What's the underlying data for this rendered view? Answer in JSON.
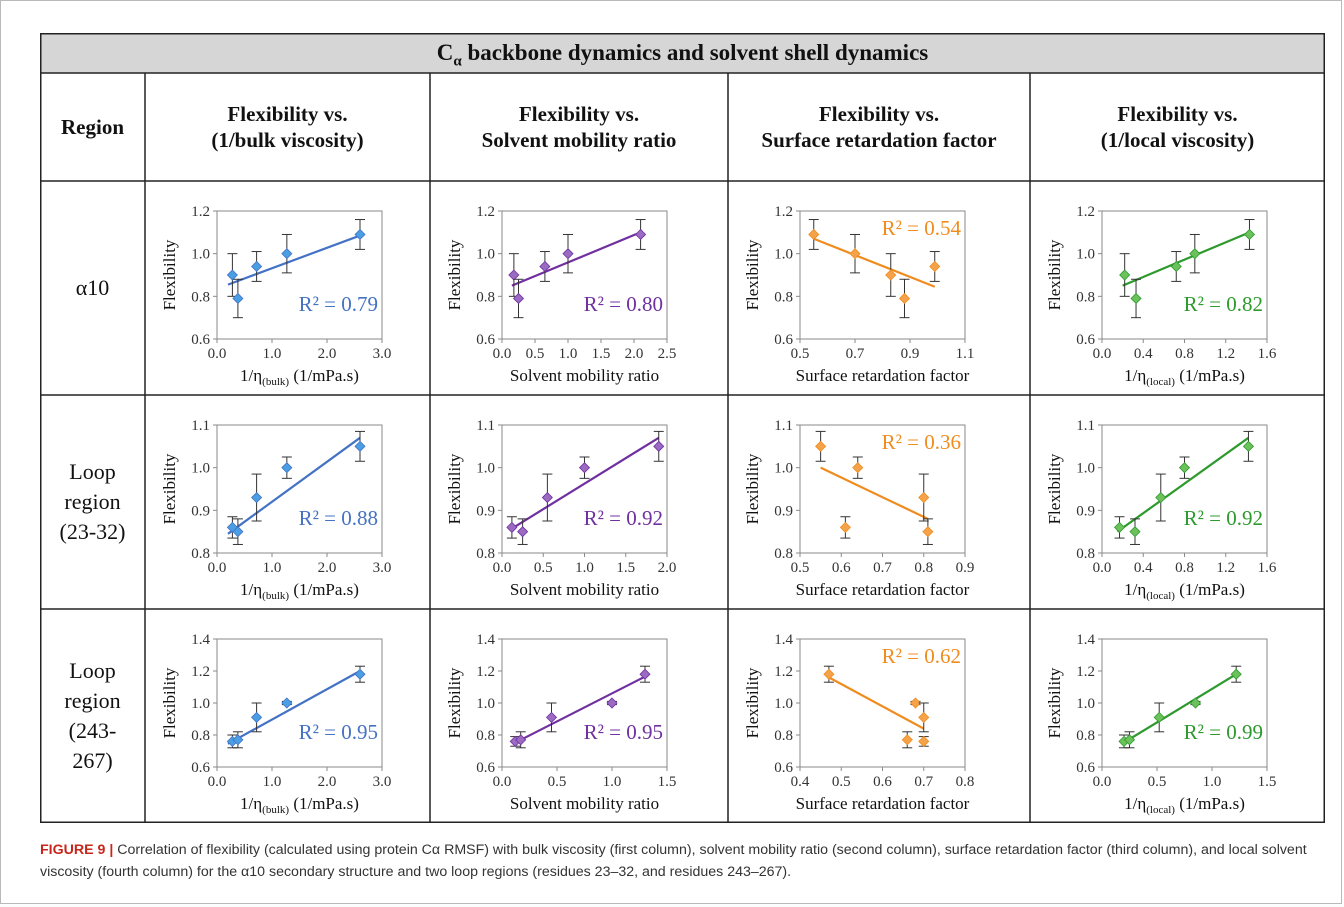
{
  "table": {
    "title_main": "C",
    "title_sub": "α",
    "title_rest": " backbone dynamics and solvent shell dynamics",
    "region_header": "Region",
    "column_headers": [
      {
        "line1": "Flexibility vs.",
        "line2": "(1/bulk viscosity)"
      },
      {
        "line1": "Flexibility vs.",
        "line2": "Solvent mobility ratio"
      },
      {
        "line1": "Flexibility vs.",
        "line2": "Surface retardation factor"
      },
      {
        "line1": "Flexibility vs.",
        "line2": "(1/local viscosity)"
      }
    ],
    "row_labels": [
      [
        "α10"
      ],
      [
        "Loop",
        "region",
        "(23-32)"
      ],
      [
        "Loop",
        "region",
        "(243-",
        "267)"
      ]
    ]
  },
  "colors": {
    "blue": "#4472c4",
    "blue_marker": "#4a9ee3",
    "purple": "#7030a0",
    "purple_marker": "#9b6ac2",
    "orange": "#f08c1e",
    "orange_marker": "#f5a34a",
    "green": "#2e9a2e",
    "green_marker": "#6cc25a",
    "header_bg": "#d6d6d6"
  },
  "chart_data": [
    {
      "id": "r1c1",
      "type": "scatter",
      "xlabel": "1/η(bulk) (1/mPa.s)",
      "ylabel": "Flexibility",
      "xlim": [
        0,
        3
      ],
      "ylim": [
        0.6,
        1.2
      ],
      "xticks": [
        "0.0",
        "1.0",
        "2.0",
        "3.0"
      ],
      "yticks": [
        "0.6",
        "0.8",
        "1.0",
        "1.2"
      ],
      "color": "blue",
      "r2": "R² = 0.79",
      "r2_pos": "bottom-right",
      "points": [
        {
          "x": 0.28,
          "y": 0.9,
          "err": 0.1
        },
        {
          "x": 0.38,
          "y": 0.79,
          "err": 0.09
        },
        {
          "x": 0.72,
          "y": 0.94,
          "err": 0.07
        },
        {
          "x": 1.27,
          "y": 1.0,
          "err": 0.09
        },
        {
          "x": 2.6,
          "y": 1.09,
          "err": 0.07
        }
      ],
      "fit": [
        [
          0.2,
          0.855
        ],
        [
          2.6,
          1.085
        ]
      ]
    },
    {
      "id": "r1c2",
      "type": "scatter",
      "xlabel": "Solvent mobility ratio",
      "ylabel": "Flexibility",
      "xlim": [
        0,
        2.5
      ],
      "ylim": [
        0.6,
        1.2
      ],
      "xticks": [
        "0.0",
        "0.5",
        "1.0",
        "1.5",
        "2.0",
        "2.5"
      ],
      "yticks": [
        "0.6",
        "0.8",
        "1.0",
        "1.2"
      ],
      "color": "purple",
      "r2": "R² = 0.80",
      "r2_pos": "bottom-right",
      "points": [
        {
          "x": 0.18,
          "y": 0.9,
          "err": 0.1
        },
        {
          "x": 0.25,
          "y": 0.79,
          "err": 0.09
        },
        {
          "x": 0.65,
          "y": 0.94,
          "err": 0.07
        },
        {
          "x": 1.0,
          "y": 1.0,
          "err": 0.09
        },
        {
          "x": 2.1,
          "y": 1.09,
          "err": 0.07
        }
      ],
      "fit": [
        [
          0.15,
          0.85
        ],
        [
          2.1,
          1.1
        ]
      ]
    },
    {
      "id": "r1c3",
      "type": "scatter",
      "xlabel": "Surface retardation factor",
      "ylabel": "Flexibility",
      "xlim": [
        0.5,
        1.1
      ],
      "ylim": [
        0.6,
        1.2
      ],
      "xticks": [
        "0.5",
        "0.7",
        "0.9",
        "1.1"
      ],
      "yticks": [
        "0.6",
        "0.8",
        "1.0",
        "1.2"
      ],
      "color": "orange",
      "r2": "R² = 0.54",
      "r2_pos": "top-right",
      "points": [
        {
          "x": 0.55,
          "y": 1.09,
          "err": 0.07
        },
        {
          "x": 0.7,
          "y": 1.0,
          "err": 0.09
        },
        {
          "x": 0.83,
          "y": 0.9,
          "err": 0.1
        },
        {
          "x": 0.88,
          "y": 0.79,
          "err": 0.09
        },
        {
          "x": 0.99,
          "y": 0.94,
          "err": 0.07
        }
      ],
      "fit": [
        [
          0.55,
          1.07
        ],
        [
          0.99,
          0.845
        ]
      ]
    },
    {
      "id": "r1c4",
      "type": "scatter",
      "xlabel": "1/η(local) (1/mPa.s)",
      "ylabel": "Flexibility",
      "xlim": [
        0,
        1.6
      ],
      "ylim": [
        0.6,
        1.2
      ],
      "xticks": [
        "0.0",
        "0.4",
        "0.8",
        "1.2",
        "1.6"
      ],
      "yticks": [
        "0.6",
        "0.8",
        "1.0",
        "1.2"
      ],
      "color": "green",
      "r2": "R² = 0.82",
      "r2_pos": "bottom-right",
      "points": [
        {
          "x": 0.22,
          "y": 0.9,
          "err": 0.1
        },
        {
          "x": 0.33,
          "y": 0.79,
          "err": 0.09
        },
        {
          "x": 0.72,
          "y": 0.94,
          "err": 0.07
        },
        {
          "x": 0.9,
          "y": 1.0,
          "err": 0.09
        },
        {
          "x": 1.43,
          "y": 1.09,
          "err": 0.07
        }
      ],
      "fit": [
        [
          0.2,
          0.85
        ],
        [
          1.43,
          1.1
        ]
      ]
    },
    {
      "id": "r2c1",
      "type": "scatter",
      "xlabel": "1/η(bulk) (1/mPa.s)",
      "ylabel": "Flexibility",
      "xlim": [
        0,
        3
      ],
      "ylim": [
        0.8,
        1.1
      ],
      "xticks": [
        "0.0",
        "1.0",
        "2.0",
        "3.0"
      ],
      "yticks": [
        "0.8",
        "0.9",
        "1.0",
        "1.1"
      ],
      "color": "blue",
      "r2": "R² = 0.88",
      "r2_pos": "bottom-right",
      "points": [
        {
          "x": 0.28,
          "y": 0.86,
          "err": 0.025
        },
        {
          "x": 0.38,
          "y": 0.85,
          "err": 0.03
        },
        {
          "x": 0.72,
          "y": 0.93,
          "err": 0.055
        },
        {
          "x": 1.27,
          "y": 1.0,
          "err": 0.025
        },
        {
          "x": 2.6,
          "y": 1.05,
          "err": 0.035
        }
      ],
      "fit": [
        [
          0.2,
          0.845
        ],
        [
          2.6,
          1.07
        ]
      ]
    },
    {
      "id": "r2c2",
      "type": "scatter",
      "xlabel": "Solvent mobility ratio",
      "ylabel": "Flexibility",
      "xlim": [
        0,
        2
      ],
      "ylim": [
        0.8,
        1.1
      ],
      "xticks": [
        "0.0",
        "0.5",
        "1.0",
        "1.5",
        "2.0"
      ],
      "yticks": [
        "0.8",
        "0.9",
        "1.0",
        "1.1"
      ],
      "color": "purple",
      "r2": "R² = 0.92",
      "r2_pos": "bottom-right",
      "points": [
        {
          "x": 0.12,
          "y": 0.86,
          "err": 0.025
        },
        {
          "x": 0.25,
          "y": 0.85,
          "err": 0.03
        },
        {
          "x": 0.55,
          "y": 0.93,
          "err": 0.055
        },
        {
          "x": 1.0,
          "y": 1.0,
          "err": 0.025
        },
        {
          "x": 1.9,
          "y": 1.05,
          "err": 0.035
        }
      ],
      "fit": [
        [
          0.1,
          0.855
        ],
        [
          1.9,
          1.07
        ]
      ]
    },
    {
      "id": "r2c3",
      "type": "scatter",
      "xlabel": "Surface retardation factor",
      "ylabel": "Flexibility",
      "xlim": [
        0.5,
        0.9
      ],
      "ylim": [
        0.8,
        1.1
      ],
      "xticks": [
        "0.5",
        "0.6",
        "0.7",
        "0.8",
        "0.9"
      ],
      "yticks": [
        "0.8",
        "0.9",
        "1.0",
        "1.1"
      ],
      "color": "orange",
      "r2": "R² = 0.36",
      "r2_pos": "top-right",
      "points": [
        {
          "x": 0.55,
          "y": 1.05,
          "err": 0.035
        },
        {
          "x": 0.61,
          "y": 0.86,
          "err": 0.025
        },
        {
          "x": 0.64,
          "y": 1.0,
          "err": 0.025
        },
        {
          "x": 0.8,
          "y": 0.93,
          "err": 0.055
        },
        {
          "x": 0.81,
          "y": 0.85,
          "err": 0.03
        }
      ],
      "fit": [
        [
          0.55,
          1.0
        ],
        [
          0.81,
          0.88
        ]
      ]
    },
    {
      "id": "r2c4",
      "type": "scatter",
      "xlabel": "1/η(local) (1/mPa.s)",
      "ylabel": "Flexibility",
      "xlim": [
        0,
        1.6
      ],
      "ylim": [
        0.8,
        1.1
      ],
      "xticks": [
        "0.0",
        "0.4",
        "0.8",
        "1.2",
        "1.6"
      ],
      "yticks": [
        "0.8",
        "0.9",
        "1.0",
        "1.1"
      ],
      "color": "green",
      "r2": "R² = 0.92",
      "r2_pos": "bottom-right",
      "points": [
        {
          "x": 0.17,
          "y": 0.86,
          "err": 0.025
        },
        {
          "x": 0.32,
          "y": 0.85,
          "err": 0.03
        },
        {
          "x": 0.57,
          "y": 0.93,
          "err": 0.055
        },
        {
          "x": 0.8,
          "y": 1.0,
          "err": 0.025
        },
        {
          "x": 1.42,
          "y": 1.05,
          "err": 0.035
        }
      ],
      "fit": [
        [
          0.15,
          0.85
        ],
        [
          1.42,
          1.07
        ]
      ]
    },
    {
      "id": "r3c1",
      "type": "scatter",
      "xlabel": "1/η(bulk) (1/mPa.s)",
      "ylabel": "Flexibility",
      "xlim": [
        0,
        3
      ],
      "ylim": [
        0.6,
        1.4
      ],
      "xticks": [
        "0.0",
        "1.0",
        "2.0",
        "3.0"
      ],
      "yticks": [
        "0.6",
        "0.8",
        "1.0",
        "1.2",
        "1.4"
      ],
      "color": "blue",
      "r2": "R² = 0.95",
      "r2_pos": "bottom-right",
      "points": [
        {
          "x": 0.28,
          "y": 0.76,
          "err": 0.04
        },
        {
          "x": 0.38,
          "y": 0.77,
          "err": 0.05
        },
        {
          "x": 0.72,
          "y": 0.91,
          "err": 0.09
        },
        {
          "x": 1.27,
          "y": 1.0,
          "err": 0.01
        },
        {
          "x": 2.6,
          "y": 1.18,
          "err": 0.05
        }
      ],
      "fit": [
        [
          0.2,
          0.745
        ],
        [
          2.6,
          1.2
        ]
      ]
    },
    {
      "id": "r3c2",
      "type": "scatter",
      "xlabel": "Solvent mobility ratio",
      "ylabel": "Flexibility",
      "xlim": [
        0,
        1.5
      ],
      "ylim": [
        0.6,
        1.4
      ],
      "xticks": [
        "0.0",
        "0.5",
        "1.0",
        "1.5"
      ],
      "yticks": [
        "0.6",
        "0.8",
        "1.0",
        "1.2",
        "1.4"
      ],
      "color": "purple",
      "r2": "R² = 0.95",
      "r2_pos": "bottom-right",
      "points": [
        {
          "x": 0.12,
          "y": 0.76,
          "err": 0.03
        },
        {
          "x": 0.17,
          "y": 0.77,
          "err": 0.05
        },
        {
          "x": 0.45,
          "y": 0.91,
          "err": 0.09
        },
        {
          "x": 1.0,
          "y": 1.0,
          "err": 0.01
        },
        {
          "x": 1.3,
          "y": 1.18,
          "err": 0.05
        }
      ],
      "fit": [
        [
          0.1,
          0.745
        ],
        [
          1.3,
          1.165
        ]
      ]
    },
    {
      "id": "r3c3",
      "type": "scatter",
      "xlabel": "Surface retardation factor",
      "ylabel": "Flexibility",
      "xlim": [
        0.4,
        0.8
      ],
      "ylim": [
        0.6,
        1.4
      ],
      "xticks": [
        "0.4",
        "0.5",
        "0.6",
        "0.7",
        "0.8"
      ],
      "yticks": [
        "0.6",
        "0.8",
        "1.0",
        "1.2",
        "1.4"
      ],
      "color": "orange",
      "r2": "R² = 0.62",
      "r2_pos": "top-right",
      "points": [
        {
          "x": 0.47,
          "y": 1.18,
          "err": 0.05
        },
        {
          "x": 0.66,
          "y": 0.77,
          "err": 0.05
        },
        {
          "x": 0.68,
          "y": 1.0,
          "err": 0.01
        },
        {
          "x": 0.7,
          "y": 0.91,
          "err": 0.09
        },
        {
          "x": 0.7,
          "y": 0.76,
          "err": 0.03
        }
      ],
      "fit": [
        [
          0.47,
          1.16
        ],
        [
          0.7,
          0.84
        ]
      ]
    },
    {
      "id": "r3c4",
      "type": "scatter",
      "xlabel": "1/η(local) (1/mPa.s)",
      "ylabel": "Flexibility",
      "xlim": [
        0,
        1.5
      ],
      "ylim": [
        0.6,
        1.4
      ],
      "xticks": [
        "0.0",
        "0.5",
        "1.0",
        "1.5"
      ],
      "yticks": [
        "0.6",
        "0.8",
        "1.0",
        "1.2",
        "1.4"
      ],
      "color": "green",
      "r2": "R² = 0.99",
      "r2_pos": "bottom-right",
      "points": [
        {
          "x": 0.2,
          "y": 0.76,
          "err": 0.04
        },
        {
          "x": 0.25,
          "y": 0.77,
          "err": 0.05
        },
        {
          "x": 0.52,
          "y": 0.91,
          "err": 0.09
        },
        {
          "x": 0.85,
          "y": 1.0,
          "err": 0.01
        },
        {
          "x": 1.22,
          "y": 1.18,
          "err": 0.05
        }
      ],
      "fit": [
        [
          0.18,
          0.745
        ],
        [
          1.22,
          1.18
        ]
      ]
    }
  ],
  "caption": {
    "label": "FIGURE 9 |",
    "text": " Correlation of flexibility (calculated using protein Cα RMSF) with bulk viscosity (first column), solvent mobility ratio (second column), surface retardation factor (third column), and local solvent viscosity (fourth column) for the α10 secondary structure and two loop regions (residues 23–32, and residues 243–267)."
  }
}
